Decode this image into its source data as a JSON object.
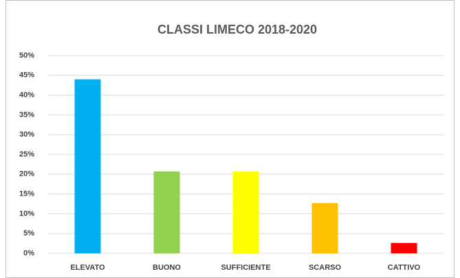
{
  "chart_data": {
    "type": "bar",
    "title": "CLASSI LIMECO 2018-2020",
    "categories": [
      "ELEVATO",
      "BUONO",
      "SUFFICIENTE",
      "SCARSO",
      "CATTIVO"
    ],
    "values": [
      44,
      20.7,
      20.7,
      12.7,
      2.6
    ],
    "colors": [
      "#00b0f0",
      "#92d050",
      "#ffff00",
      "#ffc000",
      "#ff0000"
    ],
    "ylim": [
      0,
      50
    ],
    "yticks": [
      {
        "value": 0,
        "label": "0%"
      },
      {
        "value": 5,
        "label": "5%"
      },
      {
        "value": 10,
        "label": "10%"
      },
      {
        "value": 15,
        "label": "15%"
      },
      {
        "value": 20,
        "label": "20%"
      },
      {
        "value": 25,
        "label": "25%"
      },
      {
        "value": 30,
        "label": "30%"
      },
      {
        "value": 35,
        "label": "35%"
      },
      {
        "value": 40,
        "label": "40%"
      },
      {
        "value": 45,
        "label": "45%"
      },
      {
        "value": 50,
        "label": "50%"
      }
    ],
    "grid": true
  }
}
